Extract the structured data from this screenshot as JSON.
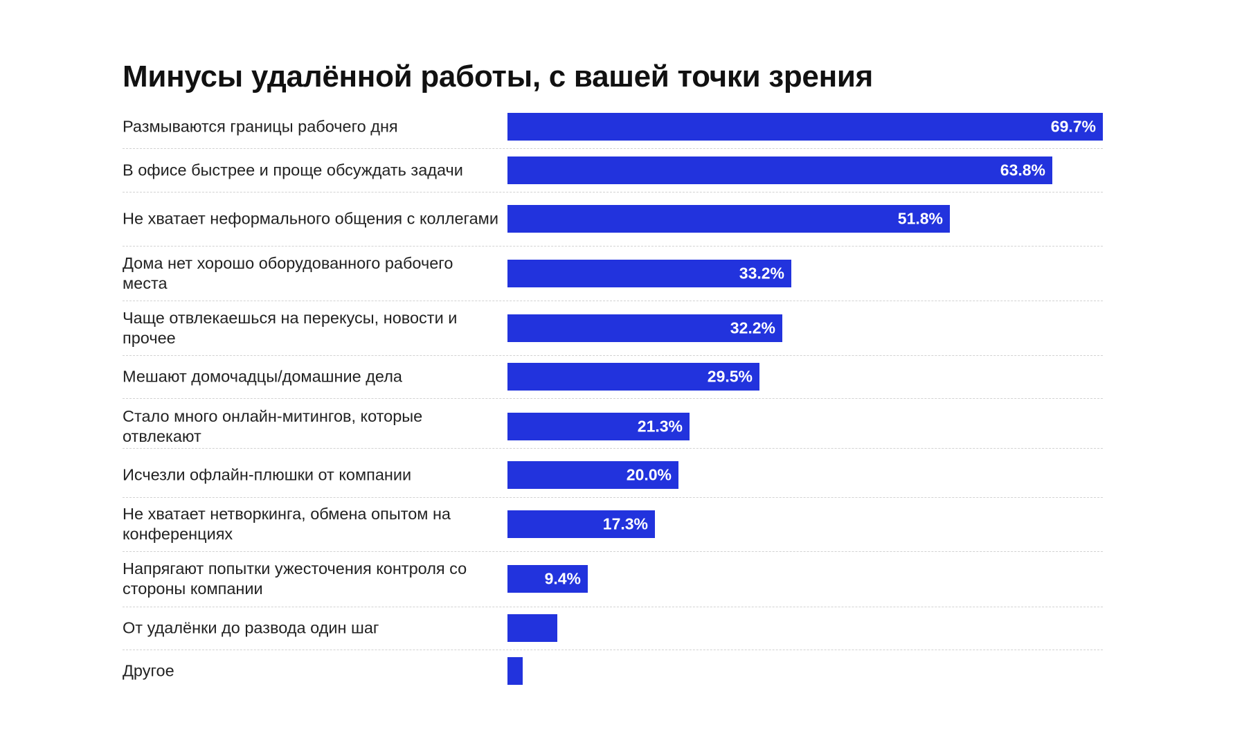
{
  "chart_data": {
    "type": "bar",
    "orientation": "horizontal",
    "title": "Минусы удалённой работы, с вашей точки зрения",
    "categories": [
      "Размываются границы рабочего дня",
      "В офисе быстрее и проще обсуждать задачи",
      "Не хватает неформального общения с коллегами",
      "Дома нет хорошо оборудованного рабочего места",
      "Чаще отвлекаешься на перекусы, новости и прочее",
      "Мешают домочадцы/домашние дела",
      "Стало много онлайн-митингов, которые отвлекают",
      "Исчезли офлайн-плюшки от компании",
      "Не хватает нетворкинга, обмена опытом на конференциях",
      "Напрягают попытки ужесточения контроля со стороны компании",
      "От удалёнки до развода один шаг",
      "Другое"
    ],
    "values": [
      69.7,
      63.8,
      51.8,
      33.2,
      32.2,
      29.5,
      21.3,
      20.0,
      17.3,
      9.4,
      5.8,
      1.8
    ],
    "labels": [
      "69.7%",
      "63.8%",
      "51.8%",
      "33.2%",
      "32.2%",
      "29.5%",
      "21.3%",
      "20.0%",
      "17.3%",
      "9.4%",
      "",
      ""
    ],
    "xlim": [
      0,
      69.7
    ],
    "bar_color": "#2233dd",
    "grid": false,
    "legend": "none"
  }
}
